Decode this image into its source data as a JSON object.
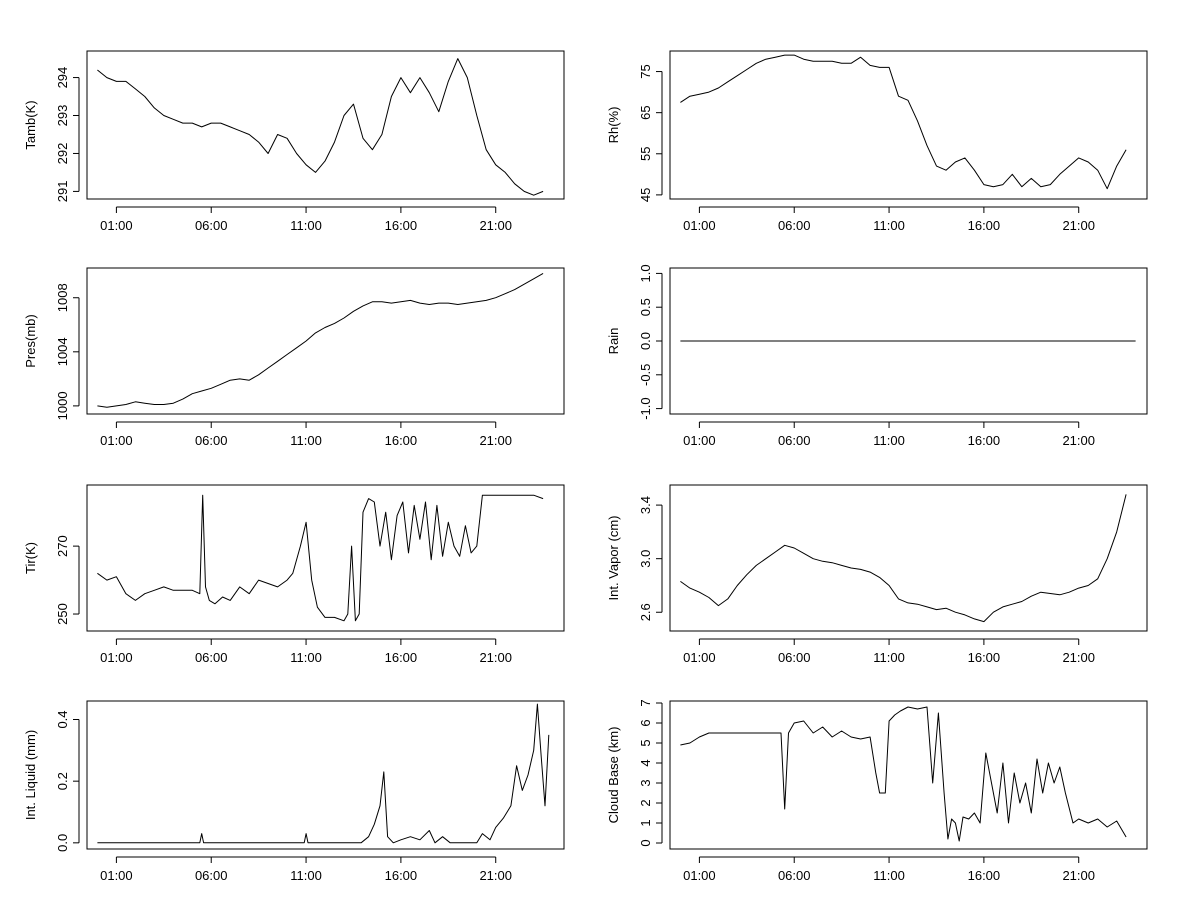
{
  "chart_data": [
    {
      "type": "line",
      "ylabel": "Tamb(K)",
      "x_ticks": [
        "01:00",
        "06:00",
        "11:00",
        "16:00",
        "21:00"
      ],
      "y_ticks": [
        "291",
        "292",
        "293",
        "294"
      ],
      "ylim": [
        290.8,
        294.7
      ],
      "series": [
        {
          "x": [
            0,
            0.5,
            1,
            1.5,
            2,
            2.5,
            3,
            3.5,
            4,
            4.5,
            5,
            5.5,
            6,
            6.5,
            7,
            7.5,
            8,
            8.5,
            9,
            9.5,
            10,
            10.5,
            11,
            11.5,
            12,
            12.5,
            13,
            13.5,
            14,
            14.5,
            15,
            15.5,
            16,
            16.5,
            17,
            17.5,
            18,
            18.5,
            19,
            19.5,
            20,
            20.5,
            21,
            21.5,
            22,
            22.5,
            23,
            23.5
          ],
          "y": [
            294.2,
            294.0,
            293.9,
            293.9,
            293.7,
            293.5,
            293.2,
            293.0,
            292.9,
            292.8,
            292.8,
            292.7,
            292.8,
            292.8,
            292.7,
            292.6,
            292.5,
            292.3,
            292.0,
            292.5,
            292.4,
            292.0,
            291.7,
            291.5,
            291.8,
            292.3,
            293.0,
            293.3,
            292.4,
            292.1,
            292.5,
            293.5,
            294.0,
            293.6,
            294.0,
            293.6,
            293.1,
            293.9,
            294.5,
            294.0,
            293.0,
            292.1,
            291.7,
            291.5,
            291.2,
            291.0,
            290.9,
            291.0
          ]
        }
      ]
    },
    {
      "type": "line",
      "ylabel": "Rh(%)",
      "x_ticks": [
        "01:00",
        "06:00",
        "11:00",
        "16:00",
        "21:00"
      ],
      "y_ticks": [
        "45",
        "55",
        "65",
        "75"
      ],
      "ylim": [
        44,
        80
      ],
      "series": [
        {
          "x": [
            0,
            0.5,
            1,
            1.5,
            2,
            2.5,
            3,
            3.5,
            4,
            4.5,
            5,
            5.5,
            6,
            6.5,
            7,
            7.5,
            8,
            8.5,
            9,
            9.5,
            10,
            10.5,
            11,
            11.5,
            12,
            12.5,
            13,
            13.5,
            14,
            14.5,
            15,
            15.5,
            16,
            16.5,
            17,
            17.5,
            18,
            18.5,
            19,
            19.5,
            20,
            20.5,
            21,
            21.5,
            22,
            22.5,
            23,
            23.5
          ],
          "y": [
            67.5,
            69,
            69.5,
            70,
            71,
            72.5,
            74,
            75.5,
            77,
            78,
            78.5,
            79,
            79,
            78,
            77.5,
            77.5,
            77.5,
            77,
            77,
            78.5,
            76.5,
            76,
            76,
            69,
            68,
            63,
            57,
            52,
            51,
            53,
            54,
            51,
            47.5,
            47,
            47.5,
            50,
            47,
            49,
            47,
            47.5,
            50,
            52,
            54,
            53,
            51,
            46.5,
            52,
            56
          ]
        }
      ]
    },
    {
      "type": "line",
      "ylabel": "Pres(mb)",
      "x_ticks": [
        "01:00",
        "06:00",
        "11:00",
        "16:00",
        "21:00"
      ],
      "y_ticks": [
        "1000",
        "1004",
        "1008"
      ],
      "ylim": [
        999.4,
        1010.2
      ],
      "series": [
        {
          "x": [
            0,
            0.5,
            1,
            1.5,
            2,
            2.5,
            3,
            3.5,
            4,
            4.5,
            5,
            5.5,
            6,
            6.5,
            7,
            7.5,
            8,
            8.5,
            9,
            9.5,
            10,
            10.5,
            11,
            11.5,
            12,
            12.5,
            13,
            13.5,
            14,
            14.5,
            15,
            15.5,
            16,
            16.5,
            17,
            17.5,
            18,
            18.5,
            19,
            19.5,
            20,
            20.5,
            21,
            21.5,
            22,
            22.5,
            23,
            23.5
          ],
          "y": [
            1000.0,
            999.9,
            1000.0,
            1000.1,
            1000.3,
            1000.2,
            1000.1,
            1000.1,
            1000.2,
            1000.5,
            1000.9,
            1001.1,
            1001.3,
            1001.6,
            1001.9,
            1002.0,
            1001.9,
            1002.3,
            1002.8,
            1003.3,
            1003.8,
            1004.3,
            1004.8,
            1005.4,
            1005.8,
            1006.1,
            1006.5,
            1007.0,
            1007.4,
            1007.7,
            1007.7,
            1007.6,
            1007.7,
            1007.8,
            1007.6,
            1007.5,
            1007.6,
            1007.6,
            1007.5,
            1007.6,
            1007.7,
            1007.8,
            1008.0,
            1008.3,
            1008.6,
            1009.0,
            1009.4,
            1009.8
          ]
        }
      ]
    },
    {
      "type": "line",
      "ylabel": "Rain",
      "x_ticks": [
        "01:00",
        "06:00",
        "11:00",
        "16:00",
        "21:00"
      ],
      "y_ticks": [
        "-1.0",
        "-0.5",
        "0.0",
        "0.5",
        "1.0"
      ],
      "ylim": [
        -1.08,
        1.08
      ],
      "series": [
        {
          "x": [
            0,
            24
          ],
          "y": [
            0,
            0
          ]
        }
      ]
    },
    {
      "type": "line",
      "ylabel": "Tir(K)",
      "x_ticks": [
        "01:00",
        "06:00",
        "11:00",
        "16:00",
        "21:00"
      ],
      "y_ticks": [
        "250",
        "270"
      ],
      "ylim": [
        245,
        288
      ],
      "series": [
        {
          "x": [
            0,
            0.5,
            1,
            1.5,
            2,
            2.5,
            3,
            3.5,
            4,
            4.5,
            5,
            5.4,
            5.55,
            5.7,
            5.9,
            6.2,
            6.6,
            7,
            7.5,
            8,
            8.5,
            9,
            9.5,
            10,
            10.3,
            10.7,
            11.0,
            11.3,
            11.6,
            12,
            12.5,
            13,
            13.2,
            13.4,
            13.6,
            13.8,
            14.0,
            14.3,
            14.6,
            14.9,
            15.2,
            15.5,
            15.8,
            16.1,
            16.4,
            16.7,
            17.0,
            17.3,
            17.6,
            17.9,
            18.2,
            18.5,
            18.8,
            19.1,
            19.4,
            19.7,
            20.0,
            20.3,
            20.6,
            21,
            21.5,
            22,
            22.5,
            23,
            23.5
          ],
          "y": [
            262,
            260,
            261,
            256,
            254,
            256,
            257,
            258,
            257,
            257,
            257,
            256,
            285,
            258,
            254,
            253,
            255,
            254,
            258,
            256,
            260,
            259,
            258,
            260,
            262,
            270,
            277,
            260,
            252,
            249,
            249,
            248,
            250,
            270,
            248,
            250,
            280,
            284,
            283,
            270,
            280,
            266,
            279,
            283,
            268,
            282,
            272,
            283,
            266,
            282,
            267,
            277,
            270,
            267,
            276,
            268,
            270,
            285,
            285,
            285,
            285,
            285,
            285,
            285,
            284
          ]
        }
      ]
    },
    {
      "type": "line",
      "ylabel": "Int. Vapor (cm)",
      "x_ticks": [
        "01:00",
        "06:00",
        "11:00",
        "16:00",
        "21:00"
      ],
      "y_ticks": [
        "2.6",
        "3.0",
        "3.4"
      ],
      "ylim": [
        2.46,
        3.55
      ],
      "series": [
        {
          "x": [
            0,
            0.5,
            1,
            1.5,
            2,
            2.5,
            3,
            3.5,
            4,
            4.5,
            5,
            5.5,
            6,
            6.5,
            7,
            7.5,
            8,
            8.5,
            9,
            9.5,
            10,
            10.5,
            11,
            11.5,
            12,
            12.5,
            13,
            13.5,
            14,
            14.5,
            15,
            15.5,
            16,
            16.5,
            17,
            17.5,
            18,
            18.5,
            19,
            19.5,
            20,
            20.5,
            21,
            21.5,
            22,
            22.5,
            23,
            23.5
          ],
          "y": [
            2.83,
            2.78,
            2.75,
            2.71,
            2.65,
            2.7,
            2.8,
            2.88,
            2.95,
            3.0,
            3.05,
            3.1,
            3.08,
            3.04,
            3.0,
            2.98,
            2.97,
            2.95,
            2.93,
            2.92,
            2.9,
            2.86,
            2.8,
            2.7,
            2.67,
            2.66,
            2.64,
            2.62,
            2.63,
            2.6,
            2.58,
            2.55,
            2.53,
            2.6,
            2.64,
            2.66,
            2.68,
            2.72,
            2.75,
            2.74,
            2.73,
            2.75,
            2.78,
            2.8,
            2.85,
            3.0,
            3.2,
            3.48
          ]
        }
      ]
    },
    {
      "type": "line",
      "ylabel": "Int. Liquid (mm)",
      "x_ticks": [
        "01:00",
        "06:00",
        "11:00",
        "16:00",
        "21:00"
      ],
      "y_ticks": [
        "0.0",
        "0.2",
        "0.4"
      ],
      "ylim": [
        -0.02,
        0.46
      ],
      "series": [
        {
          "x": [
            0,
            5.4,
            5.5,
            5.6,
            10.9,
            11.0,
            11.1,
            13.9,
            14.3,
            14.6,
            14.9,
            15.1,
            15.3,
            15.6,
            16,
            16.5,
            17,
            17.5,
            17.8,
            18.2,
            18.6,
            19.0,
            19.5,
            20.0,
            20.3,
            20.7,
            21.0,
            21.4,
            21.8,
            22.1,
            22.4,
            22.7,
            23.0,
            23.2,
            23.4,
            23.6,
            23.8
          ],
          "y": [
            0.0,
            0.0,
            0.03,
            0.0,
            0.0,
            0.03,
            0.0,
            0.0,
            0.02,
            0.06,
            0.12,
            0.23,
            0.02,
            0.0,
            0.01,
            0.02,
            0.01,
            0.04,
            0.0,
            0.02,
            0.0,
            0.0,
            0.0,
            0.0,
            0.03,
            0.01,
            0.05,
            0.08,
            0.12,
            0.25,
            0.17,
            0.22,
            0.3,
            0.45,
            0.28,
            0.12,
            0.35
          ]
        }
      ]
    },
    {
      "type": "line",
      "ylabel": "Cloud Base (km)",
      "x_ticks": [
        "01:00",
        "06:00",
        "11:00",
        "16:00",
        "21:00"
      ],
      "y_ticks": [
        "0",
        "1",
        "2",
        "3",
        "4",
        "5",
        "6",
        "7"
      ],
      "ylim": [
        -0.3,
        7.1
      ],
      "series": [
        {
          "x": [
            0,
            0.5,
            1,
            1.5,
            2,
            3,
            4,
            5,
            5.3,
            5.5,
            5.7,
            6.0,
            6.5,
            7,
            7.5,
            8,
            8.5,
            9,
            9.5,
            10,
            10.3,
            10.5,
            10.8,
            11.0,
            11.3,
            11.6,
            12,
            12.5,
            13,
            13.3,
            13.6,
            13.9,
            14.1,
            14.3,
            14.5,
            14.7,
            14.9,
            15.2,
            15.5,
            15.8,
            16.1,
            16.4,
            16.7,
            17.0,
            17.3,
            17.6,
            17.9,
            18.2,
            18.5,
            18.8,
            19.1,
            19.4,
            19.7,
            20.0,
            20.3,
            20.7,
            21,
            21.5,
            22,
            22.5,
            23,
            23.5
          ],
          "y": [
            4.9,
            5.0,
            5.3,
            5.5,
            5.5,
            5.5,
            5.5,
            5.5,
            5.5,
            1.7,
            5.5,
            6.0,
            6.1,
            5.5,
            5.8,
            5.3,
            5.6,
            5.3,
            5.2,
            5.3,
            3.5,
            2.5,
            2.5,
            6.1,
            6.4,
            6.6,
            6.8,
            6.7,
            6.8,
            3.0,
            6.5,
            2.5,
            0.2,
            1.2,
            1.0,
            0.1,
            1.3,
            1.2,
            1.5,
            1.0,
            4.5,
            3.0,
            1.5,
            4.0,
            1.0,
            3.5,
            2.0,
            3.0,
            1.5,
            4.2,
            2.5,
            4.0,
            3.0,
            3.8,
            2.5,
            1.0,
            1.2,
            1.0,
            1.2,
            0.8,
            1.1,
            0.3
          ]
        }
      ]
    }
  ]
}
